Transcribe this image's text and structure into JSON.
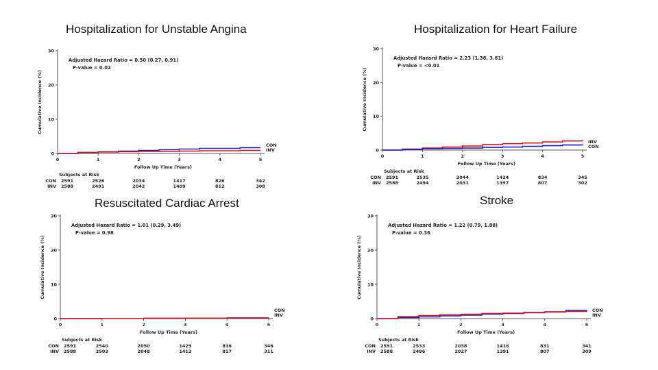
{
  "colors": {
    "con": "#1a1acc",
    "inv": "#dd1111",
    "axis": "#555555",
    "text": "#222222"
  },
  "common": {
    "xlabel": "Follow Up Time (Years)",
    "ylabel": "Cumulative Incidence (%)",
    "risk_title": "Subjects at Risk",
    "con_label": "CON",
    "inv_label": "INV",
    "x_ticks": [
      "0",
      "1",
      "2",
      "3",
      "4",
      "5"
    ],
    "y_ticks": [
      "0",
      "10",
      "20",
      "30"
    ]
  },
  "chart_data": [
    {
      "type": "line",
      "title": "Hospitalization for Unstable Angina",
      "xlabel": "Follow Up Time (Years)",
      "ylabel": "Cumulative Incidence (%)",
      "xlim": [
        0,
        5
      ],
      "ylim": [
        0,
        30
      ],
      "hr_text": "Adjusted Hazard Ratio = 0.50 (0.27, 0.91)",
      "p_text": "P-value = 0.02",
      "legend": [
        "CON",
        "INV"
      ],
      "series": [
        {
          "name": "CON",
          "x": [
            0,
            0.5,
            1,
            1.5,
            2,
            2.5,
            3,
            3.5,
            4,
            4.5,
            5
          ],
          "values": [
            0,
            0.3,
            0.5,
            0.7,
            0.9,
            1.1,
            1.3,
            1.5,
            1.5,
            1.7,
            1.7
          ]
        },
        {
          "name": "INV",
          "x": [
            0,
            0.5,
            1,
            1.5,
            2,
            2.5,
            3,
            3.5,
            4,
            4.5,
            5
          ],
          "values": [
            0,
            0.3,
            0.4,
            0.5,
            0.6,
            0.6,
            0.7,
            0.8,
            0.8,
            0.9,
            0.9
          ]
        }
      ],
      "risk": {
        "CON": [
          "2591",
          "2526",
          "2034",
          "1417",
          "826",
          "342"
        ],
        "INV": [
          "2588",
          "2491",
          "2042",
          "1409",
          "812",
          "308"
        ]
      }
    },
    {
      "type": "line",
      "title": "Hospitalization for Heart Failure",
      "xlabel": "Follow Up Time (Years)",
      "ylabel": "Cumulative Incidence (%)",
      "xlim": [
        0,
        5
      ],
      "ylim": [
        0,
        30
      ],
      "hr_text": "Adjusted Hazard Ratio = 2.23 (1.38, 3.61)",
      "p_text": "P-value = <0.01",
      "legend": [
        "INV",
        "CON"
      ],
      "series": [
        {
          "name": "INV",
          "x": [
            0,
            0.5,
            1,
            1.5,
            2,
            2.5,
            3,
            3.5,
            4,
            4.5,
            5
          ],
          "values": [
            0,
            0.3,
            0.6,
            0.9,
            1.2,
            1.6,
            1.9,
            2.1,
            2.4,
            2.7,
            2.9
          ]
        },
        {
          "name": "CON",
          "x": [
            0,
            0.5,
            1,
            1.5,
            2,
            2.5,
            3,
            3.5,
            4,
            4.5,
            5
          ],
          "values": [
            0,
            0.2,
            0.4,
            0.5,
            0.6,
            0.8,
            0.9,
            1.1,
            1.3,
            1.5,
            1.7
          ]
        }
      ],
      "risk": {
        "CON": [
          "2591",
          "2535",
          "2044",
          "1424",
          "834",
          "345"
        ],
        "INV": [
          "2588",
          "2494",
          "2031",
          "1397",
          "807",
          "302"
        ]
      }
    },
    {
      "type": "line",
      "title": "Resuscitated Cardiac Arrest",
      "xlabel": "Follow Up Time (Years)",
      "ylabel": "Cumulative Incidence (%)",
      "xlim": [
        0,
        5
      ],
      "ylim": [
        0,
        30
      ],
      "hr_text": "Adjusted Hazard Ratio = 1.01 (0.29, 3.49)",
      "p_text": "P-value = 0.98",
      "legend": [
        "CON",
        "INV"
      ],
      "series": [
        {
          "name": "CON",
          "x": [
            0,
            1,
            2,
            3,
            4,
            5
          ],
          "values": [
            0,
            0.05,
            0.1,
            0.15,
            0.2,
            0.25
          ]
        },
        {
          "name": "INV",
          "x": [
            0,
            1,
            2,
            3,
            4,
            5
          ],
          "values": [
            0,
            0.05,
            0.1,
            0.15,
            0.2,
            0.25
          ]
        }
      ],
      "risk": {
        "CON": [
          "2591",
          "2540",
          "2050",
          "1429",
          "836",
          "346"
        ],
        "INV": [
          "2588",
          "2503",
          "2048",
          "1413",
          "817",
          "311"
        ]
      }
    },
    {
      "type": "line",
      "title": "Stroke",
      "xlabel": "Follow Up Time (Years)",
      "ylabel": "Cumulative Incidence (%)",
      "xlim": [
        0,
        5
      ],
      "ylim": [
        0,
        30
      ],
      "hr_text": "Adjusted Hazard Ratio = 1.22 (0.79, 1.88)",
      "p_text": "P-value = 0.36",
      "legend": [
        "CON",
        "INV"
      ],
      "series": [
        {
          "name": "CON",
          "x": [
            0,
            0.5,
            1,
            1.5,
            2,
            2.5,
            3,
            3.5,
            4,
            4.5,
            5
          ],
          "values": [
            0,
            0.3,
            0.5,
            0.8,
            1.0,
            1.3,
            1.5,
            1.7,
            2.0,
            2.4,
            2.5
          ]
        },
        {
          "name": "INV",
          "x": [
            0,
            0.5,
            1,
            1.5,
            2,
            2.5,
            3,
            3.5,
            4,
            4.5,
            5
          ],
          "values": [
            0,
            0.6,
            0.9,
            1.1,
            1.3,
            1.5,
            1.6,
            1.8,
            1.9,
            2.1,
            2.2
          ]
        }
      ],
      "risk": {
        "CON": [
          "2591",
          "2533",
          "2038",
          "1416",
          "831",
          "341"
        ],
        "INV": [
          "2588",
          "2486",
          "2027",
          "1391",
          "807",
          "309"
        ]
      }
    }
  ]
}
